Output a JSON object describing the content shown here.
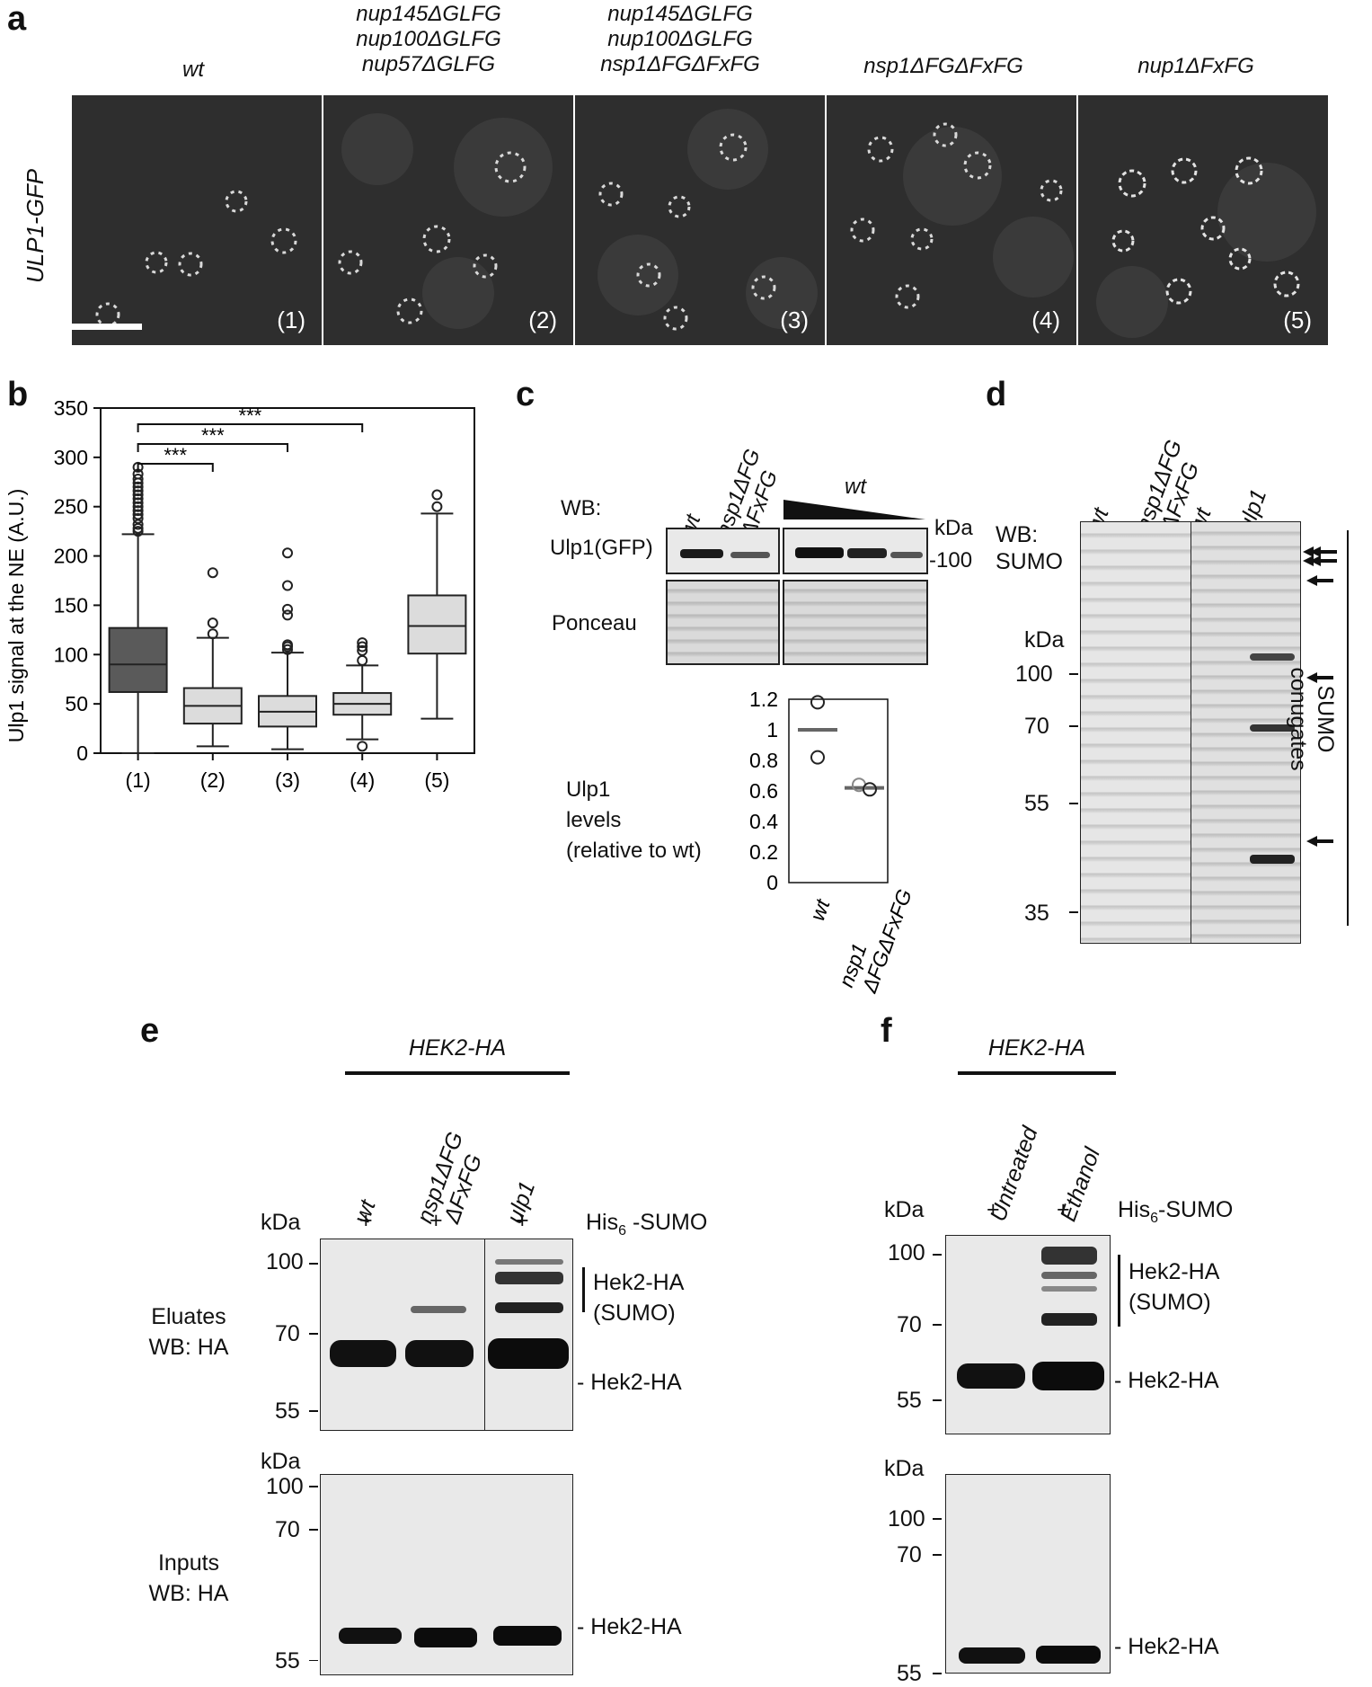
{
  "panel_labels": {
    "a": "a",
    "b": "b",
    "c": "c",
    "d": "d",
    "e": "e",
    "f": "f"
  },
  "panel_a": {
    "row_label": "ULP1-GFP",
    "columns": [
      {
        "lines": [
          "wt"
        ],
        "num": "(1)"
      },
      {
        "lines": [
          "nup145ΔGLFG",
          "nup100ΔGLFG",
          "nup57ΔGLFG"
        ],
        "num": "(2)"
      },
      {
        "lines": [
          "nup145ΔGLFG",
          "nup100ΔGLFG",
          "nsp1ΔFGΔFxFG"
        ],
        "num": "(3)"
      },
      {
        "lines": [
          "nsp1ΔFGΔFxFG"
        ],
        "num": "(4)"
      },
      {
        "lines": [
          "nup1ΔFxFG"
        ],
        "num": "(5)"
      }
    ]
  },
  "chart_data": [
    {
      "panel": "b",
      "type": "box",
      "ylabel": "Ulp1 signal at the NE (A.U.)",
      "ylim": [
        0,
        350
      ],
      "yticks": [
        0,
        50,
        100,
        150,
        200,
        250,
        300,
        350
      ],
      "categories": [
        "(1)",
        "(2)",
        "(3)",
        "(4)",
        "(5)"
      ],
      "fill_colors": [
        "#5a5a5a",
        "#dcdcdc",
        "#dcdcdc",
        "#dcdcdc",
        "#dcdcdc"
      ],
      "boxes": [
        {
          "min": 0,
          "q1": 62,
          "median": 90,
          "q3": 127,
          "max": 222,
          "outliers": [
            225,
            228,
            232,
            238,
            242,
            246,
            250,
            254,
            258,
            262,
            266,
            270,
            274,
            278,
            283,
            290
          ]
        },
        {
          "min": 7,
          "q1": 30,
          "median": 48,
          "q3": 66,
          "max": 117,
          "outliers": [
            121,
            132,
            183
          ]
        },
        {
          "min": 4,
          "q1": 27,
          "median": 42,
          "q3": 58,
          "max": 102,
          "outliers": [
            105,
            108,
            110,
            140,
            146,
            170,
            203
          ]
        },
        {
          "min": 14,
          "q1": 39,
          "median": 50,
          "q3": 61,
          "max": 89,
          "outliers": [
            7,
            94,
            104,
            108,
            112
          ]
        },
        {
          "min": 35,
          "q1": 101,
          "median": 129,
          "q3": 160,
          "max": 243,
          "outliers": [
            250,
            262
          ]
        }
      ],
      "significance": [
        {
          "from": "(1)",
          "to": "(2)",
          "label": "***"
        },
        {
          "from": "(1)",
          "to": "(3)",
          "label": "***"
        },
        {
          "from": "(1)",
          "to": "(4)",
          "label": "***"
        }
      ]
    },
    {
      "panel": "c",
      "type": "scatter",
      "ylabel_lines": [
        "Ulp1",
        "levels",
        "(relative to wt)"
      ],
      "ylim": [
        0,
        1.2
      ],
      "yticks": [
        0,
        0.2,
        0.4,
        0.6,
        0.8,
        1,
        1.2
      ],
      "ytick_labels": [
        "0",
        "0.2",
        "0.4",
        "0.6",
        "0.8",
        "1",
        "1.2"
      ],
      "categories": [
        "wt",
        "nsp1 ΔFGΔFxFG"
      ],
      "points": [
        [
          1.18,
          0.82
        ],
        [
          0.64,
          0.61
        ]
      ],
      "means": [
        1.0,
        0.62
      ]
    }
  ],
  "panel_c": {
    "wb_label": "WB:",
    "lanes": [
      "wt",
      "nsp1ΔFG",
      "ΔFxFG"
    ],
    "dilution_label": "wt",
    "kda": "kDa",
    "marker": "-100",
    "row1": "Ulp1(GFP)",
    "row2": "Ponceau"
  },
  "panel_d": {
    "lanes": [
      "wt",
      "nsp1ΔFG",
      "ΔFxFG",
      "wt",
      "ulp1"
    ],
    "wb_label": "WB:",
    "wb_target": "SUMO",
    "kda": "kDa",
    "markers": [
      "100",
      "70",
      "55",
      "35"
    ],
    "side_label": [
      "SUMO",
      "conugates"
    ]
  },
  "panel_e": {
    "strain": "HEK2-HA",
    "lanes": [
      "wt",
      "nsp1ΔFG",
      "ΔFxFG",
      "ulp1"
    ],
    "kda": "kDa",
    "plus": "+",
    "his": "His",
    "his_sub": "6",
    "his_rest": " -SUMO",
    "top_markers": [
      "100",
      "70",
      "55"
    ],
    "bottom_markers": [
      "100",
      "70",
      "55"
    ],
    "eluates": [
      "Eluates",
      "WB: HA"
    ],
    "inputs": [
      "Inputs",
      "WB: HA"
    ],
    "sumo_label": [
      "Hek2-HA",
      "(SUMO)"
    ],
    "band_label": "- Hek2-HA"
  },
  "panel_f": {
    "strain": "HEK2-HA",
    "lanes": [
      "Untreated",
      "Ethanol"
    ],
    "kda": "kDa",
    "plus": "+",
    "his": "His",
    "his_sub": "6",
    "his_rest": "-SUMO",
    "top_markers": [
      "100",
      "70",
      "55"
    ],
    "bottom_markers": [
      "100",
      "70",
      "55"
    ],
    "sumo_label": [
      "Hek2-HA",
      "(SUMO)"
    ],
    "band_label": "- Hek2-HA"
  }
}
